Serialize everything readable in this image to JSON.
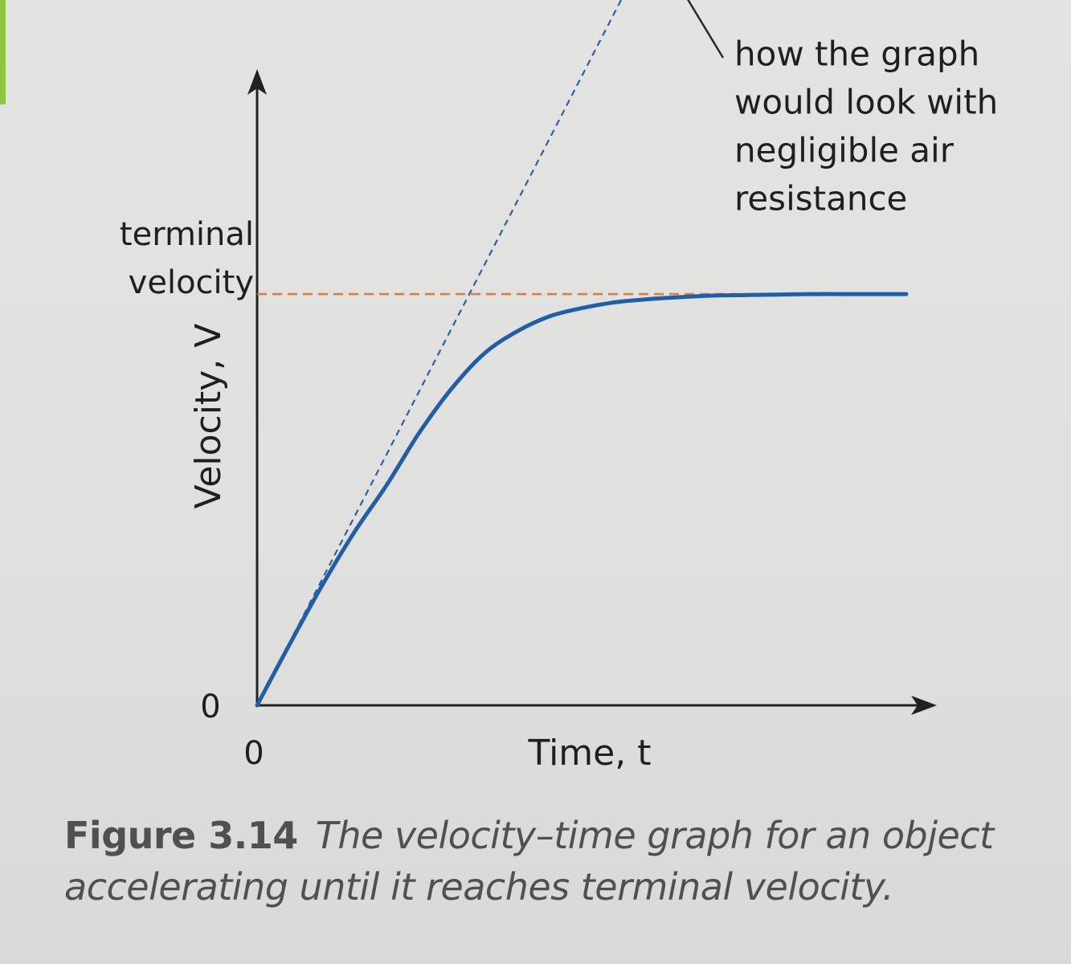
{
  "chart_data": {
    "type": "line",
    "title": "",
    "xlabel": "Time, t",
    "ylabel": "Velocity, V",
    "x_ticks": [
      "0"
    ],
    "y_ticks": [
      "0"
    ],
    "xlim": [
      0,
      10
    ],
    "ylim": [
      0,
      10
    ],
    "terminal_velocity_value": 7.9,
    "terminal_velocity_label": [
      "terminal",
      "velocity"
    ],
    "series": [
      {
        "style": "solid",
        "color": "#1f5fa8",
        "x": [
          0,
          0.5,
          1.0,
          1.5,
          2.0,
          2.5,
          3.0,
          3.5,
          4.0,
          4.5,
          5.0,
          5.5,
          6.0,
          6.5,
          7.0,
          7.5,
          8.0,
          8.5,
          9.0,
          9.5,
          10.0
        ],
        "y": [
          0,
          1.17,
          2.3,
          3.33,
          4.24,
          5.24,
          6.09,
          6.76,
          7.18,
          7.47,
          7.63,
          7.74,
          7.8,
          7.84,
          7.87,
          7.88,
          7.89,
          7.9,
          7.9,
          7.9,
          7.9
        ]
      },
      {
        "style": "dashed",
        "color": "#2d5fa6",
        "x": [
          0,
          6.0
        ],
        "y": [
          0,
          14.5
        ]
      },
      {
        "style": "dashed",
        "color": "#e07b3c",
        "x": [
          0,
          10.0
        ],
        "y": [
          7.9,
          7.9
        ]
      }
    ],
    "annotations": [
      {
        "lines": [
          "how the graph",
          "would look with",
          "negligible air",
          "resistance"
        ],
        "points_to": [
          6.0,
          14.5
        ]
      }
    ],
    "grid": false,
    "legend": "none"
  },
  "caption": {
    "label": "Figure 3.14",
    "text": "The velocity–time graph for an object accelerating until it reaches terminal velocity."
  },
  "colors": {
    "axis": "#222222",
    "curve": "#1f5fa8",
    "dashed_line": "#2d5fa6",
    "terminal_line": "#e07b3c",
    "caption": "#505050",
    "accent_edge": "#8dc63f"
  }
}
